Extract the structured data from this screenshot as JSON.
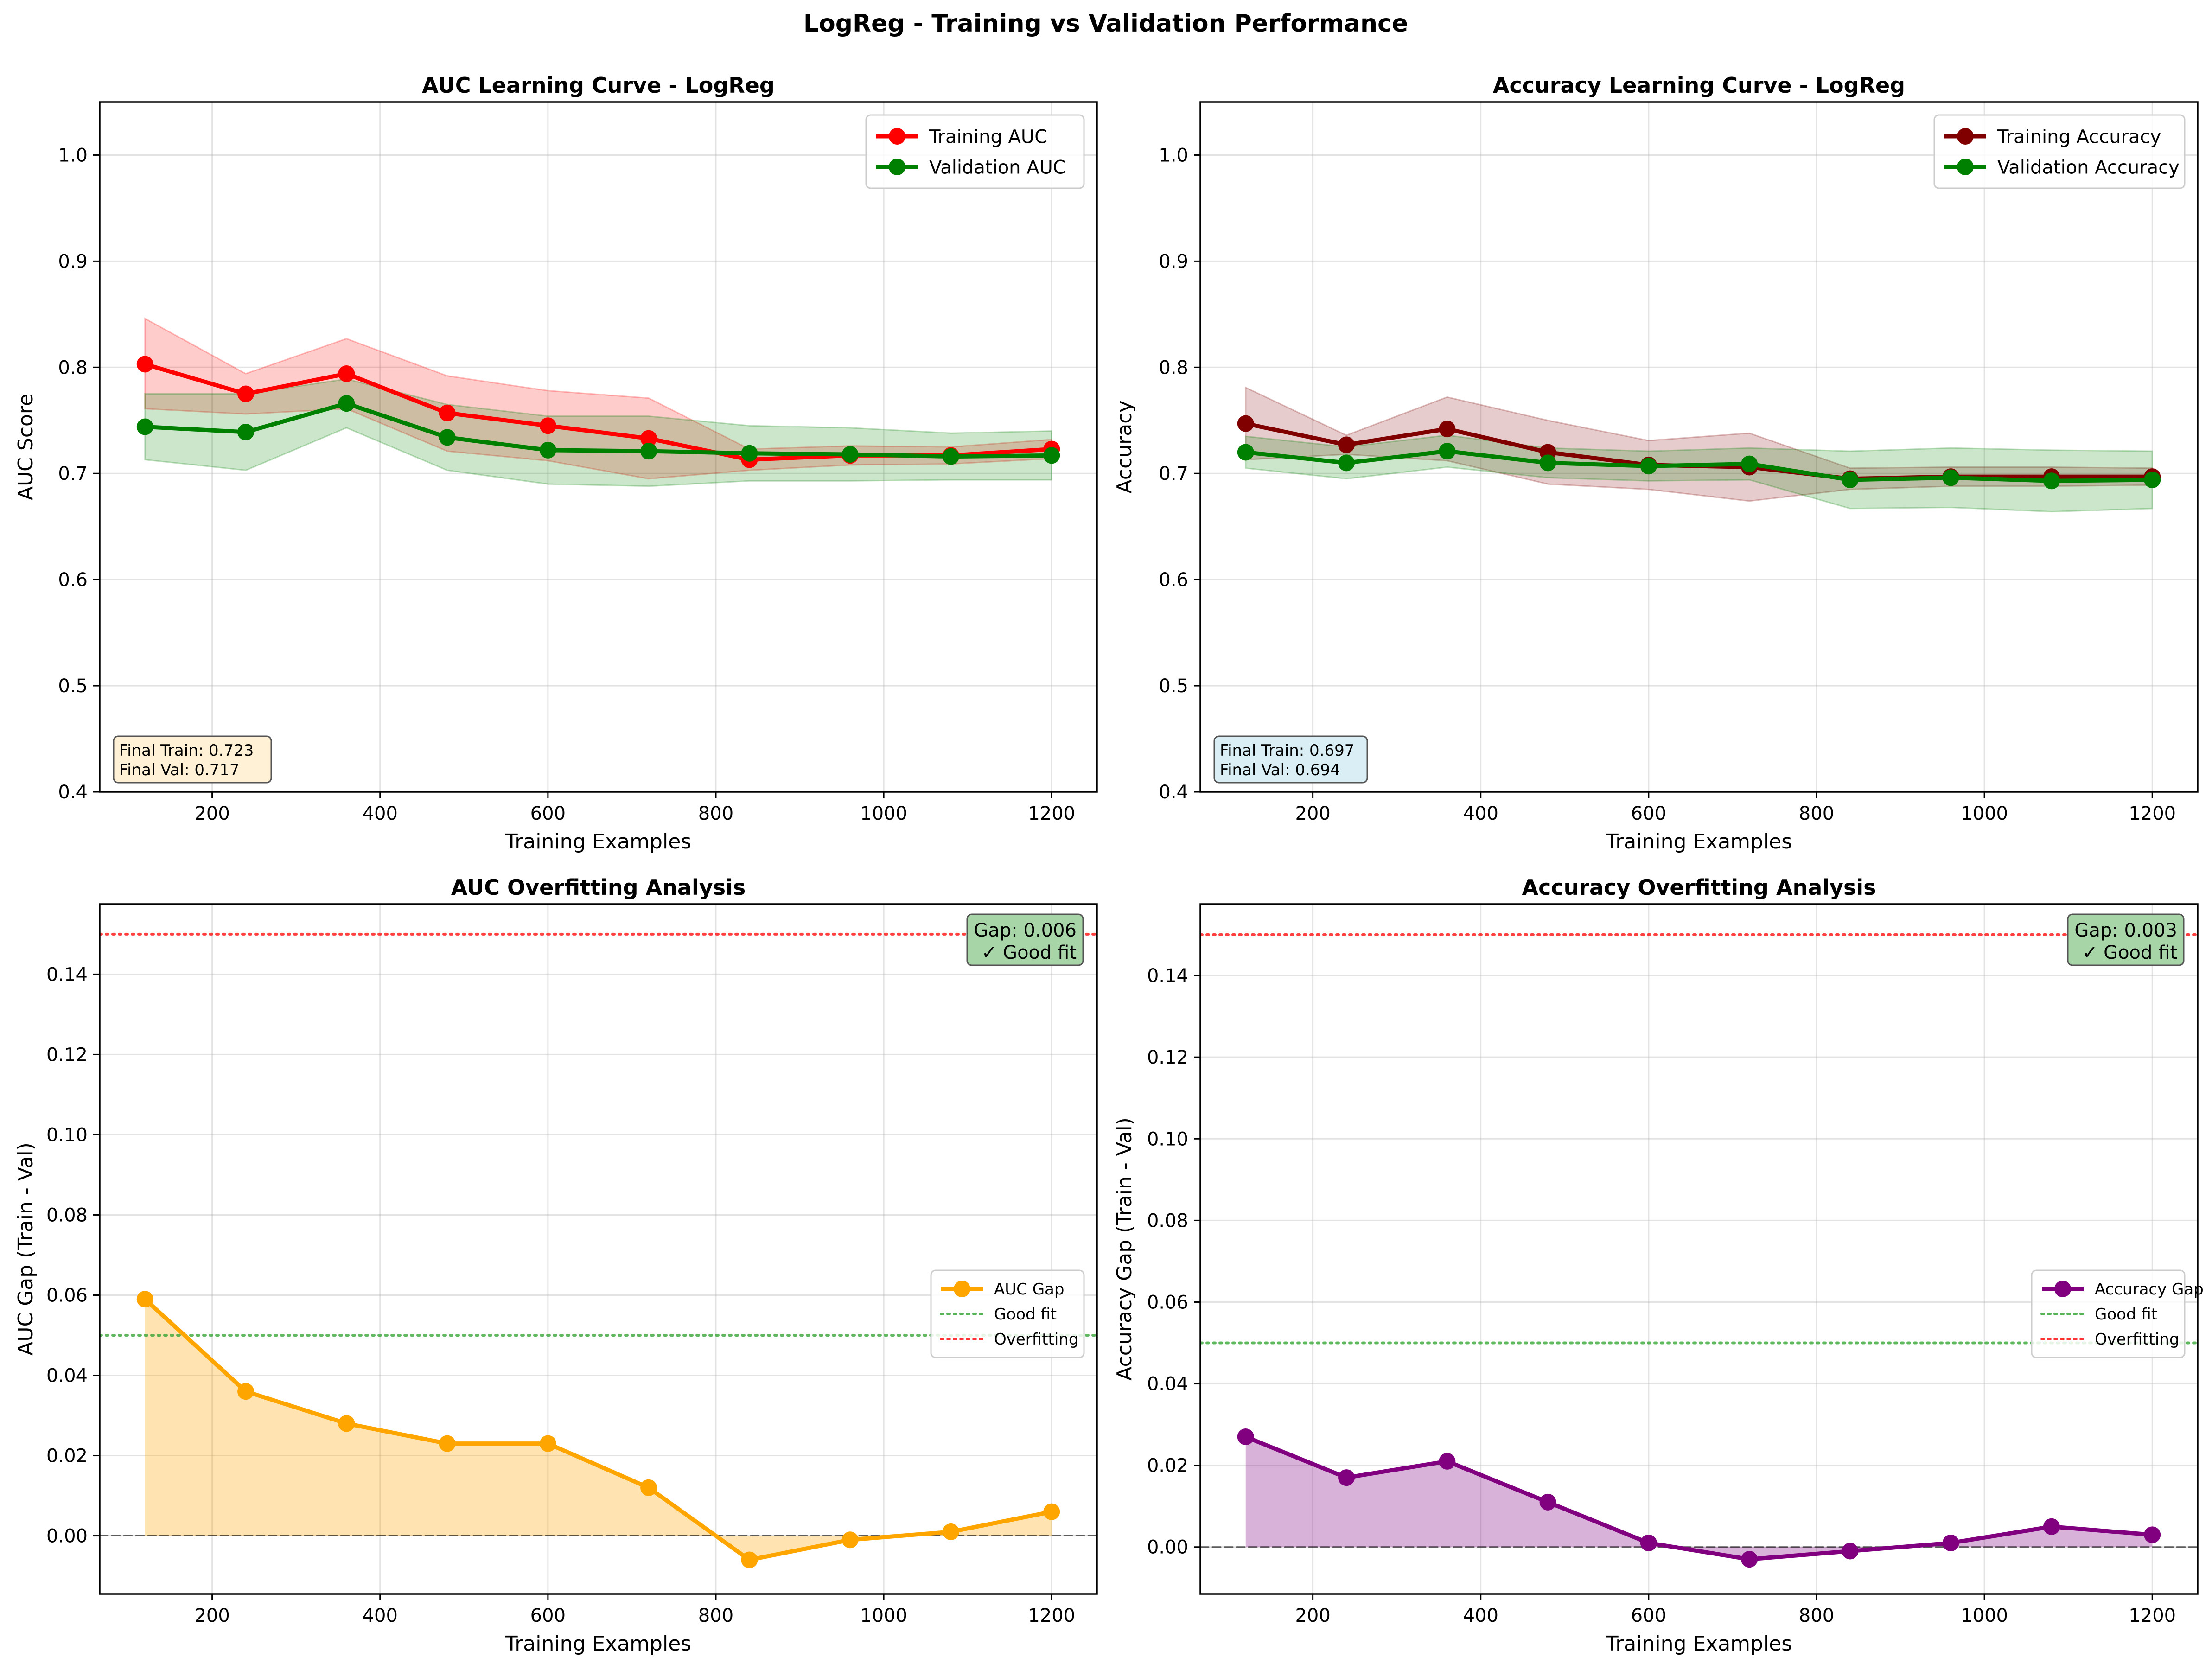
{
  "figure": {
    "title": "LogReg - Training vs Validation Performance"
  },
  "colors": {
    "train_auc": "#ff0000",
    "val": "#008000",
    "train_acc": "#800000",
    "auc_gap": "#ffa500",
    "acc_gap": "#800080",
    "good_fit": "#2ca02c",
    "overfit": "#ff0000",
    "box_auc": "#fff1d6",
    "box_acc": "#d9eef5",
    "box_good": "#a8d5a8"
  },
  "chart_data": [
    {
      "id": "auc_curve",
      "type": "line",
      "title": "AUC Learning Curve - LogReg",
      "xlabel": "Training Examples",
      "ylabel": "AUC Score",
      "xlim": [
        66,
        1254
      ],
      "ylim": [
        0.4,
        1.05
      ],
      "xticks": [
        200,
        400,
        600,
        800,
        1000,
        1200
      ],
      "yticks": [
        0.4,
        0.5,
        0.6,
        0.7,
        0.8,
        0.9,
        1.0
      ],
      "grid": true,
      "legend": "upper right",
      "x": [
        120,
        240,
        360,
        480,
        600,
        720,
        840,
        960,
        1080,
        1200
      ],
      "series": [
        {
          "name": "Training AUC",
          "color": "#ff0000",
          "values": [
            0.803,
            0.775,
            0.794,
            0.757,
            0.745,
            0.733,
            0.713,
            0.717,
            0.717,
            0.723
          ],
          "band_low": [
            0.761,
            0.756,
            0.761,
            0.721,
            0.712,
            0.695,
            0.703,
            0.708,
            0.709,
            0.714
          ],
          "band_high": [
            0.846,
            0.794,
            0.827,
            0.792,
            0.778,
            0.771,
            0.723,
            0.726,
            0.725,
            0.732
          ]
        },
        {
          "name": "Validation AUC",
          "color": "#008000",
          "values": [
            0.744,
            0.739,
            0.766,
            0.734,
            0.722,
            0.721,
            0.719,
            0.718,
            0.716,
            0.717
          ],
          "band_low": [
            0.713,
            0.703,
            0.743,
            0.703,
            0.69,
            0.688,
            0.693,
            0.693,
            0.694,
            0.694
          ],
          "band_high": [
            0.775,
            0.775,
            0.789,
            0.765,
            0.754,
            0.754,
            0.745,
            0.743,
            0.738,
            0.74
          ]
        }
      ],
      "info_box": {
        "line1": "Final Train: 0.723",
        "line2": "Final Val: 0.717"
      }
    },
    {
      "id": "acc_curve",
      "type": "line",
      "title": "Accuracy Learning Curve - LogReg",
      "xlabel": "Training Examples",
      "ylabel": "Accuracy",
      "xlim": [
        66,
        1254
      ],
      "ylim": [
        0.4,
        1.05
      ],
      "xticks": [
        200,
        400,
        600,
        800,
        1000,
        1200
      ],
      "yticks": [
        0.4,
        0.5,
        0.6,
        0.7,
        0.8,
        0.9,
        1.0
      ],
      "grid": true,
      "legend": "upper right",
      "x": [
        120,
        240,
        360,
        480,
        600,
        720,
        840,
        960,
        1080,
        1200
      ],
      "series": [
        {
          "name": "Training Accuracy",
          "color": "#800000",
          "values": [
            0.747,
            0.727,
            0.742,
            0.72,
            0.708,
            0.706,
            0.695,
            0.697,
            0.697,
            0.697
          ],
          "band_low": [
            0.713,
            0.718,
            0.712,
            0.69,
            0.685,
            0.674,
            0.685,
            0.688,
            0.688,
            0.689
          ],
          "band_high": [
            0.781,
            0.736,
            0.772,
            0.75,
            0.731,
            0.738,
            0.705,
            0.706,
            0.706,
            0.705
          ]
        },
        {
          "name": "Validation Accuracy",
          "color": "#008000",
          "values": [
            0.72,
            0.71,
            0.721,
            0.71,
            0.707,
            0.709,
            0.694,
            0.696,
            0.693,
            0.694
          ],
          "band_low": [
            0.705,
            0.695,
            0.706,
            0.696,
            0.693,
            0.694,
            0.667,
            0.668,
            0.664,
            0.667
          ],
          "band_high": [
            0.735,
            0.725,
            0.736,
            0.724,
            0.721,
            0.724,
            0.721,
            0.724,
            0.722,
            0.721
          ]
        }
      ],
      "info_box": {
        "line1": "Final Train: 0.697",
        "line2": "Final Val: 0.694"
      }
    },
    {
      "id": "auc_gap",
      "type": "area",
      "title": "AUC Overfitting Analysis",
      "xlabel": "Training Examples",
      "ylabel": "AUC Gap (Train - Val)",
      "xlim": [
        66,
        1254
      ],
      "ylim": [
        -0.0145,
        0.1575
      ],
      "xticks": [
        200,
        400,
        600,
        800,
        1000,
        1200
      ],
      "yticks": [
        0.0,
        0.02,
        0.04,
        0.06,
        0.08,
        0.1,
        0.12,
        0.14
      ],
      "ytick_labels": [
        "0.00",
        "0.02",
        "0.04",
        "0.06",
        "0.08",
        "0.10",
        "0.12",
        "0.14"
      ],
      "grid": true,
      "legend": "center right",
      "x": [
        120,
        240,
        360,
        480,
        600,
        720,
        840,
        960,
        1080,
        1200
      ],
      "series": [
        {
          "name": "AUC Gap",
          "color": "#ffa500",
          "values": [
            0.059,
            0.036,
            0.028,
            0.023,
            0.023,
            0.012,
            -0.006,
            -0.001,
            0.001,
            0.006
          ]
        }
      ],
      "reference_lines": [
        {
          "name": "Good fit",
          "y": 0.05,
          "color": "#2ca02c",
          "style": "dotted"
        },
        {
          "name": "Overfitting",
          "y": 0.15,
          "color": "#ff0000",
          "style": "dotted"
        },
        {
          "name": "",
          "y": 0.0,
          "color": "#000000",
          "style": "dashed"
        }
      ],
      "status_box": {
        "line1": "Gap: 0.006",
        "line2": "✓ Good fit"
      }
    },
    {
      "id": "acc_gap",
      "type": "area",
      "title": "Accuracy Overfitting Analysis",
      "xlabel": "Training Examples",
      "ylabel": "Accuracy Gap (Train - Val)",
      "xlim": [
        66,
        1254
      ],
      "ylim": [
        -0.0115,
        0.1575
      ],
      "xticks": [
        200,
        400,
        600,
        800,
        1000,
        1200
      ],
      "yticks": [
        0.0,
        0.02,
        0.04,
        0.06,
        0.08,
        0.1,
        0.12,
        0.14
      ],
      "ytick_labels": [
        "0.00",
        "0.02",
        "0.04",
        "0.06",
        "0.08",
        "0.10",
        "0.12",
        "0.14"
      ],
      "grid": true,
      "legend": "center right",
      "x": [
        120,
        240,
        360,
        480,
        600,
        720,
        840,
        960,
        1080,
        1200
      ],
      "series": [
        {
          "name": "Accuracy Gap",
          "color": "#800080",
          "values": [
            0.027,
            0.017,
            0.021,
            0.011,
            0.001,
            -0.003,
            -0.001,
            0.001,
            0.005,
            0.003
          ]
        }
      ],
      "reference_lines": [
        {
          "name": "Good fit",
          "y": 0.05,
          "color": "#2ca02c",
          "style": "dotted"
        },
        {
          "name": "Overfitting",
          "y": 0.15,
          "color": "#ff0000",
          "style": "dotted"
        },
        {
          "name": "",
          "y": 0.0,
          "color": "#000000",
          "style": "dashed"
        }
      ],
      "status_box": {
        "line1": "Gap: 0.003",
        "line2": "✓ Good fit"
      }
    }
  ]
}
